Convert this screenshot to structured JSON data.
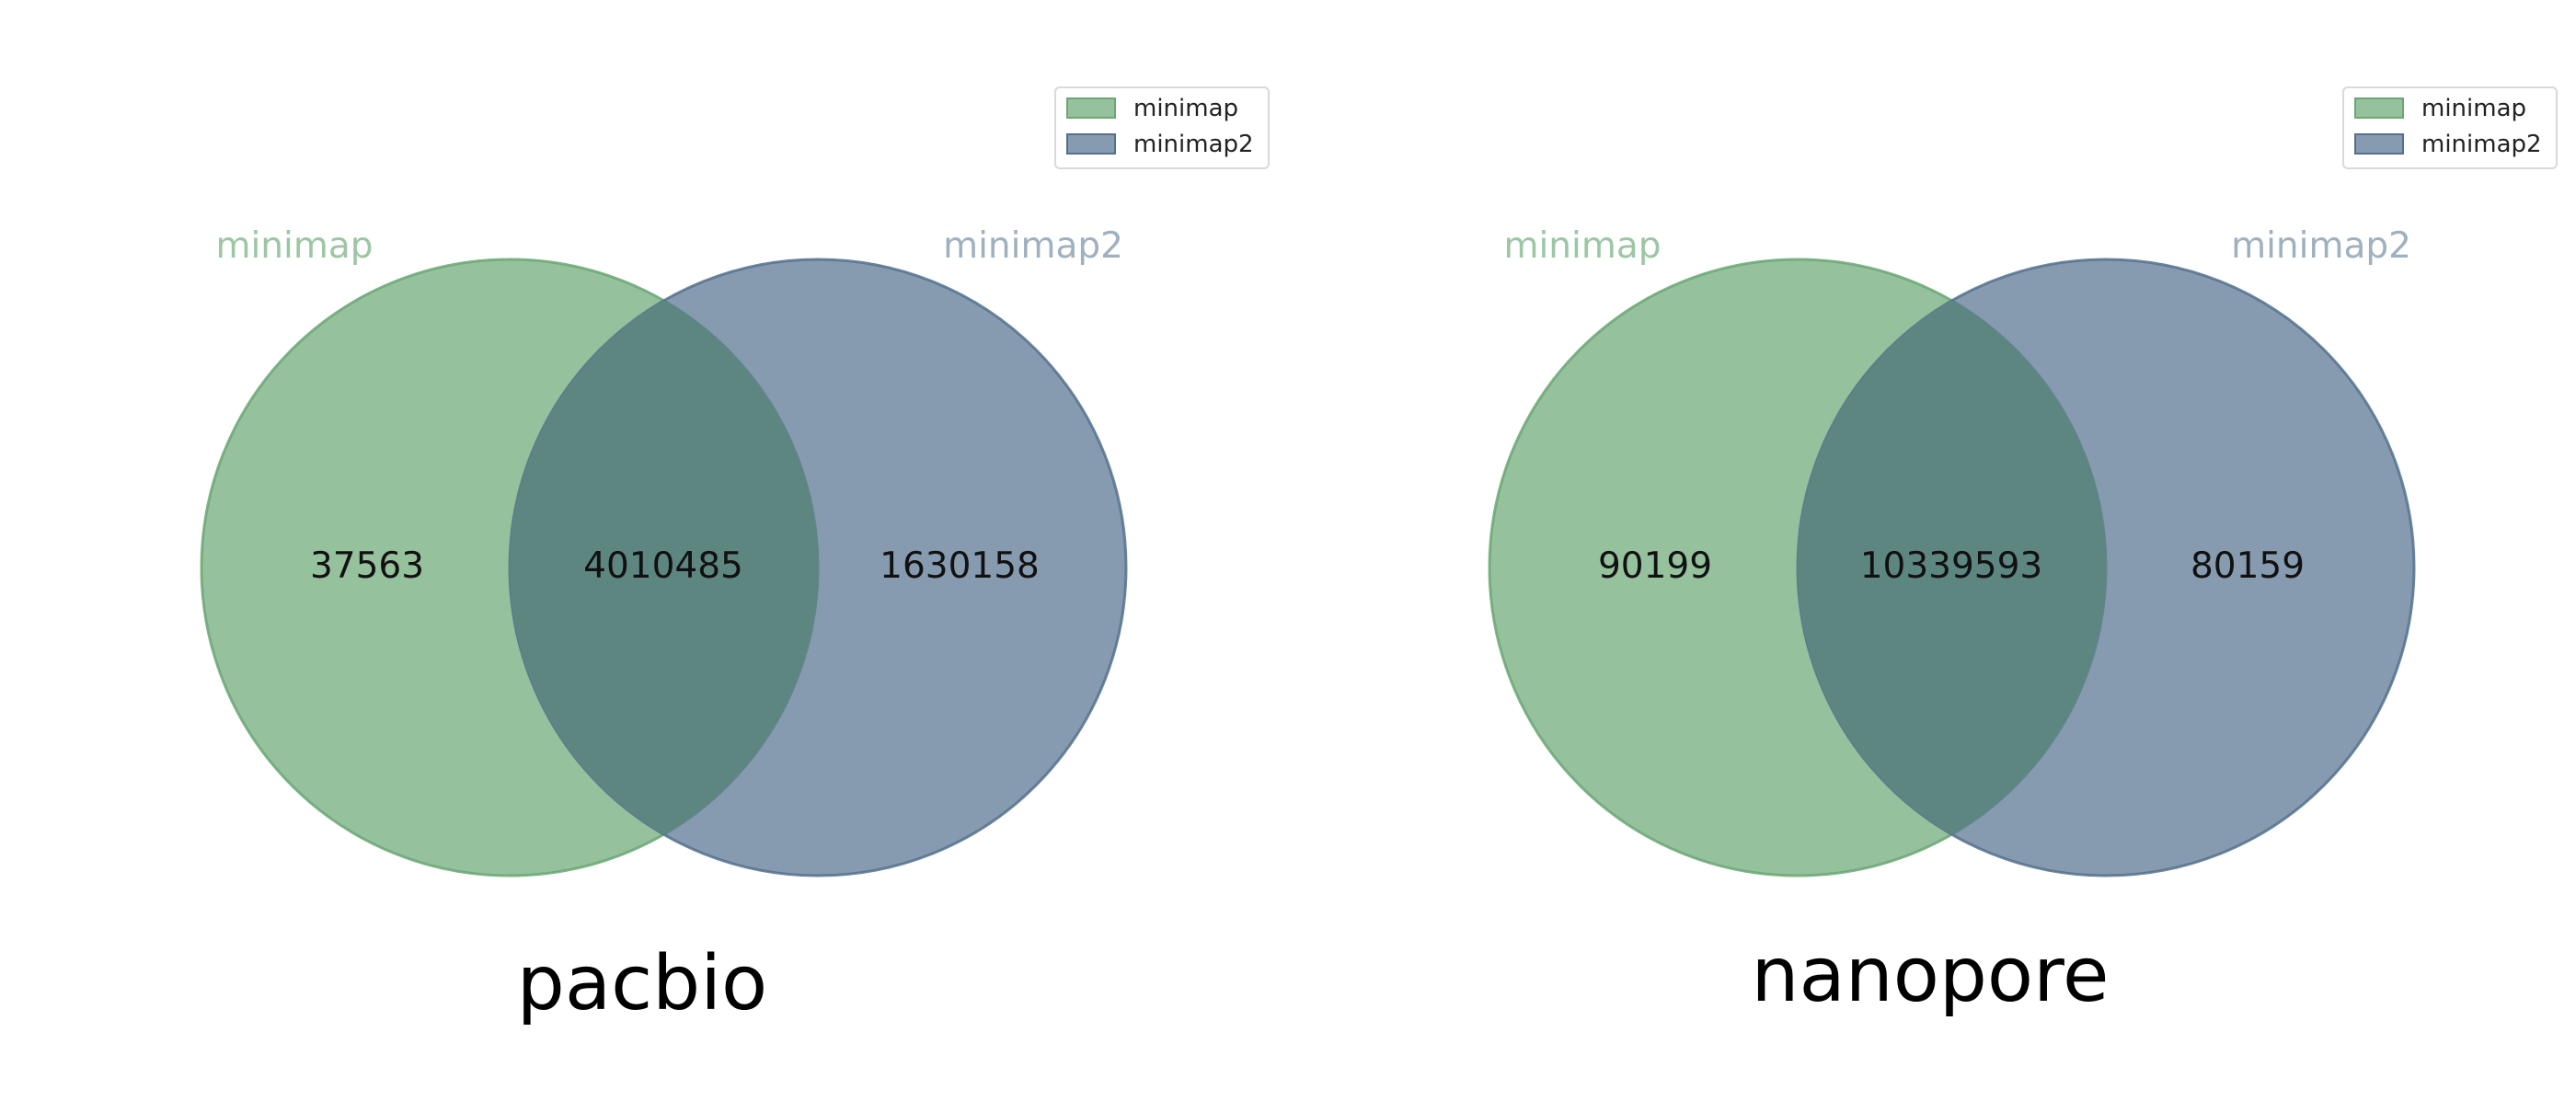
{
  "chart_data": [
    {
      "type": "venn",
      "title": "pacbio",
      "sets": [
        "minimap",
        "minimap2"
      ],
      "legend": {
        "entries": [
          "minimap",
          "minimap2"
        ],
        "placement": "top-right"
      },
      "regions": {
        "minimap_only": 37563,
        "both": 4010485,
        "minimap2_only": 1630158
      },
      "region_labels": {
        "minimap_only": "37563",
        "both": "4010485",
        "minimap2_only": "1630158"
      }
    },
    {
      "type": "venn",
      "title": "nanopore",
      "sets": [
        "minimap",
        "minimap2"
      ],
      "legend": {
        "entries": [
          "minimap",
          "minimap2"
        ],
        "placement": "top-right"
      },
      "regions": {
        "minimap_only": 90199,
        "both": 10339593,
        "minimap2_only": 80159
      },
      "region_labels": {
        "minimap_only": "90199",
        "both": "10339593",
        "minimap2_only": "80159"
      }
    }
  ],
  "colors": {
    "minimap": "#6aa774",
    "minimap2": "#53718d",
    "minimap_label": "#9cc6a4",
    "minimap2_label": "#9fb0bf",
    "circle_fill_opacity": 0.7
  }
}
